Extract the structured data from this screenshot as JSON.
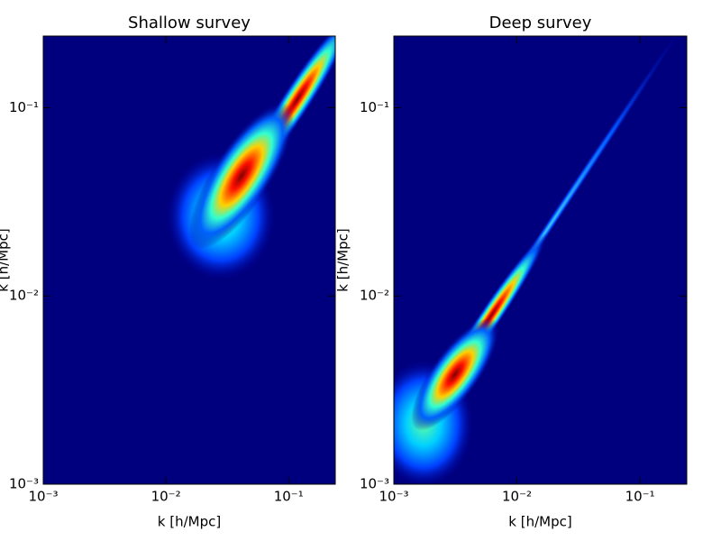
{
  "chart_data": [
    {
      "type": "heatmap",
      "title": "Shallow survey",
      "xlabel": "k [h/Mpc]",
      "ylabel": "k [h/Mpc]",
      "xscale": "log",
      "yscale": "log",
      "background": "#00007f",
      "xlim": [
        0.001,
        0.24
      ],
      "ylim": [
        0.001,
        0.24
      ],
      "xticks": [
        {
          "value": 0.001,
          "label": "10⁻³"
        },
        {
          "value": 0.01,
          "label": "10⁻²"
        },
        {
          "value": 0.1,
          "label": "10⁻¹"
        }
      ],
      "yticks": [
        {
          "value": 0.001,
          "label": "10⁻³"
        },
        {
          "value": 0.01,
          "label": "10⁻²"
        },
        {
          "value": 0.1,
          "label": "10⁻¹"
        }
      ]
    },
    {
      "type": "heatmap",
      "title": "Deep survey",
      "xlabel": "k [h/Mpc]",
      "ylabel": "k [h/Mpc]",
      "xscale": "log",
      "yscale": "log",
      "background": "#00007f",
      "xlim": [
        0.001,
        0.24
      ],
      "ylim": [
        0.001,
        0.24
      ],
      "xticks": [
        {
          "value": 0.001,
          "label": "10⁻³"
        },
        {
          "value": 0.01,
          "label": "10⁻²"
        },
        {
          "value": 0.1,
          "label": "10⁻¹"
        }
      ],
      "yticks": [
        {
          "value": 0.001,
          "label": "10⁻³"
        },
        {
          "value": 0.01,
          "label": "10⁻²"
        },
        {
          "value": 0.1,
          "label": "10⁻¹"
        }
      ]
    }
  ]
}
